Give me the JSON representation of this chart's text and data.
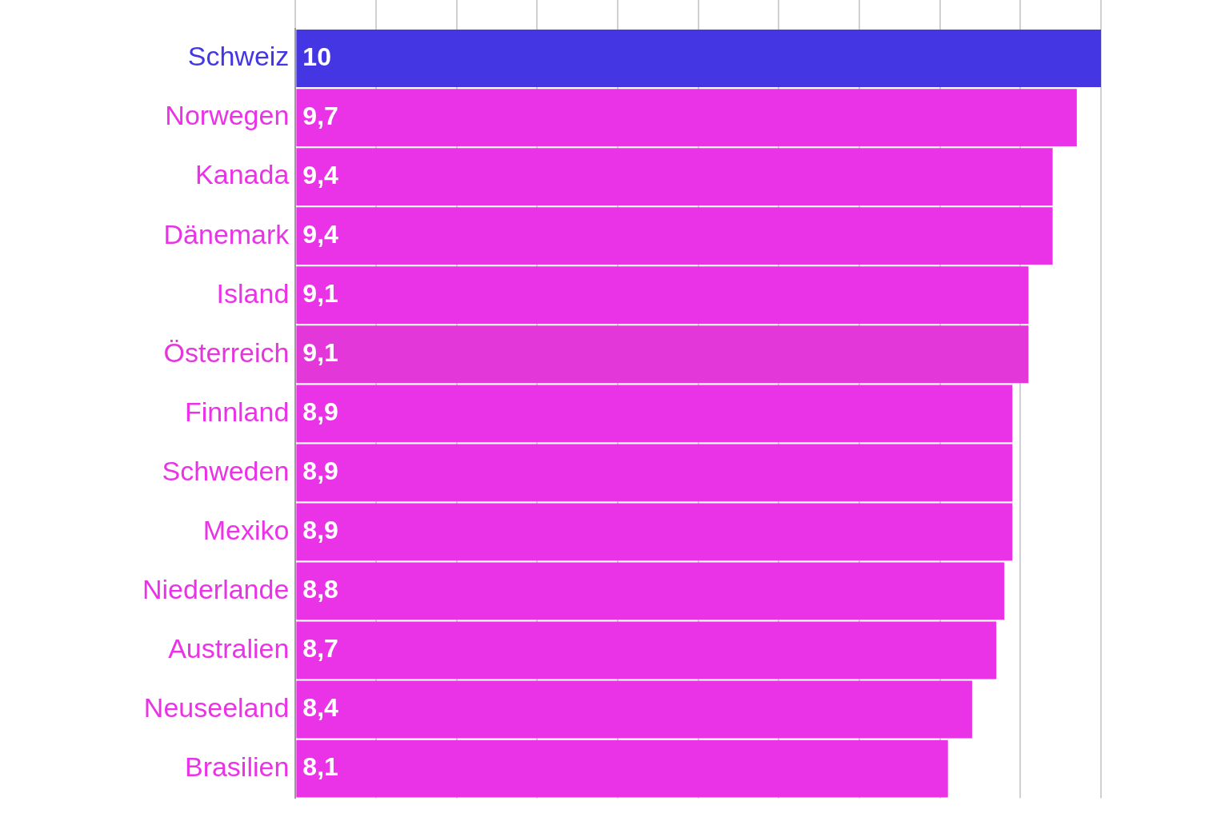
{
  "chart_data": {
    "type": "bar",
    "orientation": "horizontal",
    "categories": [
      "Schweiz",
      "Norwegen",
      "Kanada",
      "Dänemark",
      "Island",
      "Österreich",
      "Finnland",
      "Schweden",
      "Mexiko",
      "Niederlande",
      "Australien",
      "Neuseeland",
      "Brasilien"
    ],
    "values": [
      10,
      9.7,
      9.4,
      9.4,
      9.1,
      9.1,
      8.9,
      8.9,
      8.9,
      8.8,
      8.7,
      8.4,
      8.1
    ],
    "colors": [
      "#4437e3",
      "#ea33e6",
      "#ea33e6",
      "#ea33e6",
      "#ea33e6",
      "#e337d9",
      "#ea33e6",
      "#ea33e6",
      "#ea33e6",
      "#ea33e6",
      "#ea33e6",
      "#ea33e6",
      "#ea33e6"
    ],
    "xlim": [
      0,
      10
    ],
    "xticks": [
      {
        "value": 0,
        "label": null
      },
      {
        "value": 1,
        "label": null
      },
      {
        "value": 2,
        "label": null
      },
      {
        "value": 3,
        "label": null
      },
      {
        "value": 4,
        "label": null
      },
      {
        "value": 5,
        "label": null
      },
      {
        "value": 6,
        "label": null
      },
      {
        "value": 7,
        "label": null
      },
      {
        "value": 8,
        "label": null
      },
      {
        "value": 9,
        "label": null
      },
      {
        "value": 10,
        "label": null
      }
    ],
    "value_labels": [
      "10",
      "9,7",
      "9,4",
      "9,4",
      "9,1",
      "9,1",
      "8,9",
      "8,9",
      "8,9",
      "8,8",
      "8,7",
      "8,4",
      "8,1"
    ],
    "grid": "x",
    "tick_labels": "y",
    "legend": false
  }
}
